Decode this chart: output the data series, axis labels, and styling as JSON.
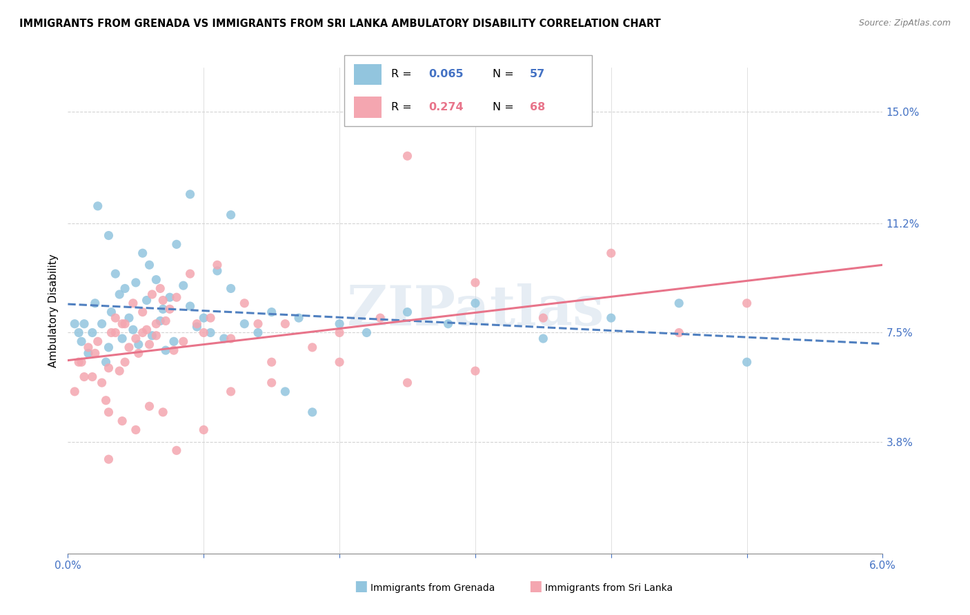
{
  "title": "IMMIGRANTS FROM GRENADA VS IMMIGRANTS FROM SRI LANKA AMBULATORY DISABILITY CORRELATION CHART",
  "source": "Source: ZipAtlas.com",
  "ylabel": "Ambulatory Disability",
  "ytick_vals": [
    3.8,
    7.5,
    11.2,
    15.0
  ],
  "ytick_labels": [
    "3.8%",
    "7.5%",
    "11.2%",
    "15.0%"
  ],
  "xmin": 0.0,
  "xmax": 6.0,
  "ymin": 0.0,
  "ymax": 16.5,
  "grenada_color": "#92c5de",
  "srilanka_color": "#f4a6b0",
  "trendline_grenada_color": "#5080c0",
  "trendline_srilanka_color": "#e8748a",
  "watermark": "ZIPatlas",
  "legend_box_color": "#d0e4f0",
  "legend_R_grenada": "0.065",
  "legend_N_grenada": "57",
  "legend_R_srilanka": "0.274",
  "legend_N_srilanka": "68",
  "grenada_x": [
    0.05,
    0.08,
    0.1,
    0.12,
    0.15,
    0.18,
    0.2,
    0.22,
    0.25,
    0.28,
    0.3,
    0.3,
    0.32,
    0.35,
    0.38,
    0.4,
    0.42,
    0.45,
    0.48,
    0.5,
    0.52,
    0.55,
    0.58,
    0.6,
    0.62,
    0.65,
    0.68,
    0.7,
    0.72,
    0.75,
    0.78,
    0.8,
    0.85,
    0.9,
    0.9,
    0.95,
    1.0,
    1.05,
    1.1,
    1.15,
    1.2,
    1.2,
    1.3,
    1.4,
    1.5,
    1.6,
    1.7,
    1.8,
    2.0,
    2.2,
    2.5,
    2.8,
    3.0,
    3.5,
    4.0,
    4.5,
    5.0
  ],
  "grenada_y": [
    7.8,
    7.5,
    7.2,
    7.8,
    6.8,
    7.5,
    8.5,
    11.8,
    7.8,
    6.5,
    7.0,
    10.8,
    8.2,
    9.5,
    8.8,
    7.3,
    9.0,
    8.0,
    7.6,
    9.2,
    7.1,
    10.2,
    8.6,
    9.8,
    7.4,
    9.3,
    7.9,
    8.3,
    6.9,
    8.7,
    7.2,
    10.5,
    9.1,
    8.4,
    12.2,
    7.7,
    8.0,
    7.5,
    9.6,
    7.3,
    9.0,
    11.5,
    7.8,
    7.5,
    8.2,
    5.5,
    8.0,
    4.8,
    7.8,
    7.5,
    8.2,
    7.8,
    8.5,
    7.3,
    8.0,
    8.5,
    6.5
  ],
  "srilanka_x": [
    0.05,
    0.08,
    0.1,
    0.12,
    0.15,
    0.18,
    0.2,
    0.22,
    0.25,
    0.28,
    0.3,
    0.3,
    0.3,
    0.32,
    0.35,
    0.38,
    0.4,
    0.4,
    0.42,
    0.45,
    0.48,
    0.5,
    0.5,
    0.52,
    0.55,
    0.58,
    0.6,
    0.6,
    0.62,
    0.65,
    0.68,
    0.7,
    0.7,
    0.72,
    0.75,
    0.78,
    0.8,
    0.85,
    0.9,
    0.95,
    1.0,
    1.0,
    1.05,
    1.1,
    1.2,
    1.2,
    1.3,
    1.4,
    1.5,
    1.5,
    1.6,
    1.8,
    2.0,
    2.0,
    2.3,
    2.5,
    3.0,
    3.0,
    3.5,
    4.0,
    4.5,
    5.0,
    0.35,
    0.42,
    0.55,
    0.65,
    0.8,
    2.5
  ],
  "srilanka_y": [
    5.5,
    6.5,
    6.5,
    6.0,
    7.0,
    6.0,
    6.8,
    7.2,
    5.8,
    5.2,
    6.3,
    4.8,
    3.2,
    7.5,
    8.0,
    6.2,
    7.8,
    4.5,
    6.5,
    7.0,
    8.5,
    7.3,
    4.2,
    6.8,
    8.2,
    7.6,
    7.1,
    5.0,
    8.8,
    7.4,
    9.0,
    8.6,
    4.8,
    7.9,
    8.3,
    6.9,
    8.7,
    7.2,
    9.5,
    7.8,
    7.5,
    4.2,
    8.0,
    9.8,
    7.3,
    5.5,
    8.5,
    7.8,
    6.5,
    5.8,
    7.8,
    7.0,
    7.5,
    6.5,
    8.0,
    5.8,
    9.2,
    6.2,
    8.0,
    10.2,
    7.5,
    8.5,
    7.5,
    7.8,
    7.5,
    7.8,
    3.5,
    13.5
  ]
}
